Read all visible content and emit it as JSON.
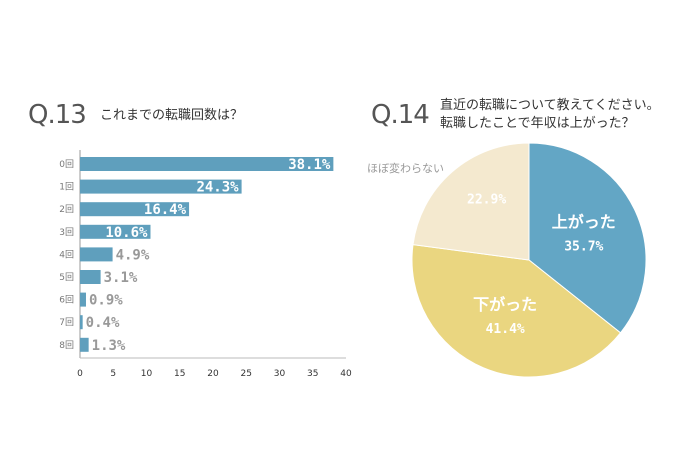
{
  "q13": {
    "number": "Q.13",
    "question": "これまでの転職回数は？",
    "chart_data": {
      "type": "bar",
      "orientation": "horizontal",
      "categories": [
        "0回",
        "1回",
        "2回",
        "3回",
        "4回",
        "5回",
        "6回",
        "7回",
        "8回"
      ],
      "values": [
        38.1,
        24.3,
        16.4,
        10.6,
        4.9,
        3.1,
        0.9,
        0.4,
        1.3
      ],
      "value_labels": [
        "38.1%",
        "24.3%",
        "16.4%",
        "10.6%",
        "4.9%",
        "3.1%",
        "0.9%",
        "0.4%",
        "1.3%"
      ],
      "xticks": [
        "0",
        "5",
        "10",
        "15",
        "20",
        "25",
        "30",
        "35",
        "40"
      ],
      "xlim": [
        0,
        40
      ],
      "bar_color": "#5f9fbd",
      "grid": false
    }
  },
  "q14": {
    "number": "Q.14",
    "question_line1": "直近の転職について教えてください。",
    "question_line2": "転職したことで年収は上がった？",
    "chart_data": {
      "type": "pie",
      "labels": [
        "上がった",
        "下がった",
        "ほぼ変わらない"
      ],
      "values": [
        35.7,
        41.4,
        22.9
      ],
      "value_labels": [
        "35.7%",
        "41.4%",
        "22.9%"
      ],
      "colors": [
        "#63a6c5",
        "#ead680",
        "#f4e9cf"
      ]
    }
  }
}
